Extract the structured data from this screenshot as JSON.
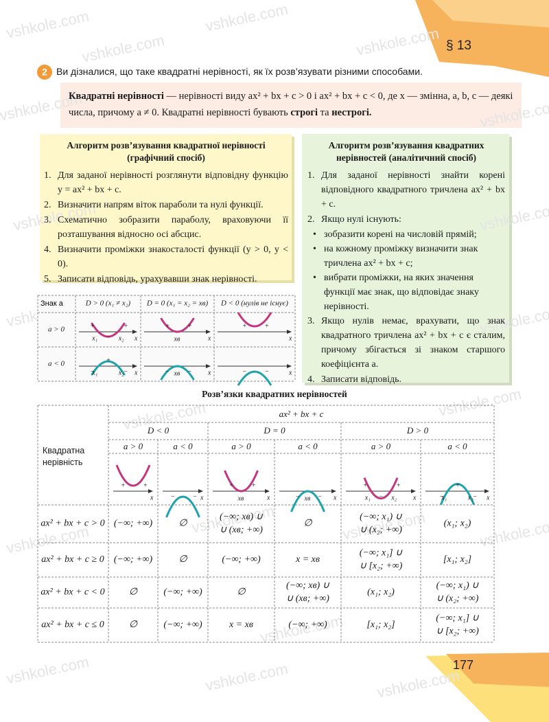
{
  "header": {
    "section": "§ 13",
    "page_number": "177"
  },
  "watermark": "vshkole.com",
  "intro": {
    "number": "2",
    "text": "Ви дізналися, що таке квадратні нерівності, як їх розв’язувати різними способами."
  },
  "definition": {
    "term": "Квадратні нерівності",
    "body": "— нерівності виду ax² + bx + c > 0 і ax² + bx + c < 0, де x — змінна, a, b, c — деякі числа, причому a ≠ 0. Квадратні нерівності бувають",
    "strict": "строгі",
    "conjunction": "та",
    "nonstrict": "нестрогі."
  },
  "graphic_algorithm": {
    "title": "Алгоритм розв’язування квадратної нерівності (графічний спосіб)",
    "steps": [
      {
        "number": "1.",
        "text": "Для заданої нерівності розглянути відповідну функцію y = ax² + bx + c."
      },
      {
        "number": "2.",
        "text": "Визначити напрям віток параболи та нулі функції."
      },
      {
        "number": "3.",
        "text": "Схематично зобразити параболу, враховуючи її розташування відносно осі абсцис."
      },
      {
        "number": "4.",
        "text": "Визначити проміжки знакосталості функції (y > 0, y < 0)."
      },
      {
        "number": "5.",
        "text": "Записати відповідь, урахувавши знак нерівності."
      }
    ]
  },
  "analytic_algorithm": {
    "title": "Алгоритм розв’язування квадратних нерівностей (аналітичний спосіб)",
    "steps": [
      {
        "number": "1.",
        "text": "Для заданої нерівності знайти корені відповідного квадратного тричлена ax² + bx + c."
      },
      {
        "number": "2.",
        "text": "Якщо нулі існують:",
        "bullets": [
          "зобразити корені на числовій прямій;",
          "на кожному проміжку визначити знак тричлена ax² + bx + c;",
          "вибрати проміжки, на яких значення функції має знак, що відповідає знаку нерівності."
        ]
      },
      {
        "number": "3.",
        "text": "Якщо нулів немає, врахувати, що знак квадратного тричлена ax² + bx + c є сталим, причому збігається зі знаком старшого коефіцієнта a."
      },
      {
        "number": "4.",
        "text": "Записати відповідь."
      }
    ]
  },
  "sign_table": {
    "corner": "Знак a",
    "columns": [
      "D > 0 (x₁ ≠ x₂)",
      "D = 0 (x₁ = x₂ = xв)",
      "D < 0 (нулів не існує)"
    ],
    "rows": [
      "a > 0",
      "a < 0"
    ]
  },
  "symbols": {
    "x": "x",
    "x1": "x₁",
    "x2": "x₂",
    "xv": "xв",
    "plus": "+",
    "minus": "−"
  },
  "solutions_table": {
    "title": "Розв’язки квадратних нерівностей",
    "expression": "ax² + bx + c",
    "row_header": "Квадратна нерівність",
    "discriminant": [
      "D < 0",
      "D = 0",
      "D > 0"
    ],
    "leading": [
      "a > 0",
      "a < 0"
    ],
    "rows": [
      {
        "inequality": "ax² + bx + c > 0",
        "cells": [
          [
            "(−∞; +∞)"
          ],
          [
            "∅"
          ],
          [
            "(−∞; xв) ∪",
            "∪ (xв; +∞)"
          ],
          [
            "∅"
          ],
          [
            "(−∞; x₁) ∪",
            "∪ (x₂; +∞)"
          ],
          [
            "(x₁; x₂)"
          ]
        ]
      },
      {
        "inequality": "ax² + bx + c ≥ 0",
        "cells": [
          [
            "(−∞; +∞)"
          ],
          [
            "∅"
          ],
          [
            "(−∞; +∞)"
          ],
          [
            "x = xв"
          ],
          [
            "(−∞; x₁] ∪",
            "∪ [x₂; +∞)"
          ],
          [
            "[x₁; x₂]"
          ]
        ]
      },
      {
        "inequality": "ax² + bx + c < 0",
        "cells": [
          [
            "∅"
          ],
          [
            "(−∞; +∞)"
          ],
          [
            "∅"
          ],
          [
            "(−∞; xв) ∪",
            "∪ (xв; +∞)"
          ],
          [
            "(x₁; x₂)"
          ],
          [
            "(−∞; x₁) ∪",
            "∪ (x₂; +∞)"
          ]
        ]
      },
      {
        "inequality": "ax² + bx + c ≤ 0",
        "cells": [
          [
            "∅"
          ],
          [
            "(−∞; +∞)"
          ],
          [
            "x = xв"
          ],
          [
            "(−∞; +∞)"
          ],
          [
            "[x₁; x₂]"
          ],
          [
            "(−∞; x₁] ∪",
            "∪ [x₂; +∞)"
          ]
        ]
      }
    ]
  }
}
